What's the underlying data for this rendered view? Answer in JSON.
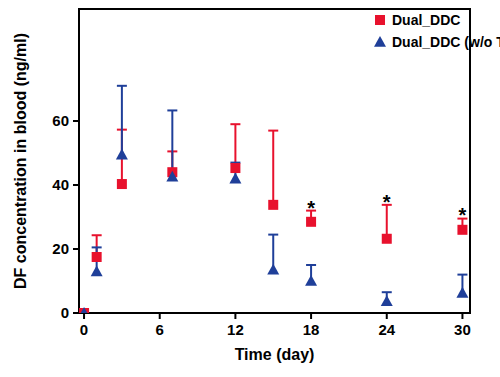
{
  "chart_data": {
    "type": "scatter",
    "x_label": "Time (day)",
    "y_label": "DF concentration in blood (ng/ml)",
    "x": [
      0,
      1,
      3,
      7,
      12,
      15,
      18,
      24,
      30
    ],
    "xlim": [
      -0.4,
      30.6
    ],
    "xticks": [
      0,
      6,
      12,
      18,
      24,
      30
    ],
    "ylim": [
      0,
      95
    ],
    "yticks": [
      0,
      20,
      40,
      60
    ],
    "legend": "top right",
    "grid": false,
    "series": [
      {
        "name": "Dual_DDC",
        "color": "#e8112d",
        "marker": "square",
        "values": [
          0,
          17.5,
          40.3,
          44,
          45.3,
          33.8,
          28.5,
          23.2,
          26
        ],
        "errors": [
          0,
          6.8,
          17,
          6.5,
          13.7,
          23.2,
          3.5,
          10.6,
          3.5
        ]
      },
      {
        "name": "Dual_DDC (w/o TR)",
        "color": "#1f3f99",
        "marker": "triangle",
        "values": [
          0,
          13,
          49.5,
          42.6,
          42,
          13.5,
          10,
          3.7,
          6.3
        ],
        "errors": [
          0,
          7.5,
          21.5,
          20.7,
          5,
          11,
          5,
          2.8,
          5.7
        ]
      }
    ],
    "annotations": [
      {
        "text": "*",
        "x": 18,
        "y": 33
      },
      {
        "text": "*",
        "x": 24,
        "y": 35
      },
      {
        "text": "*",
        "x": 30,
        "y": 31
      }
    ]
  }
}
